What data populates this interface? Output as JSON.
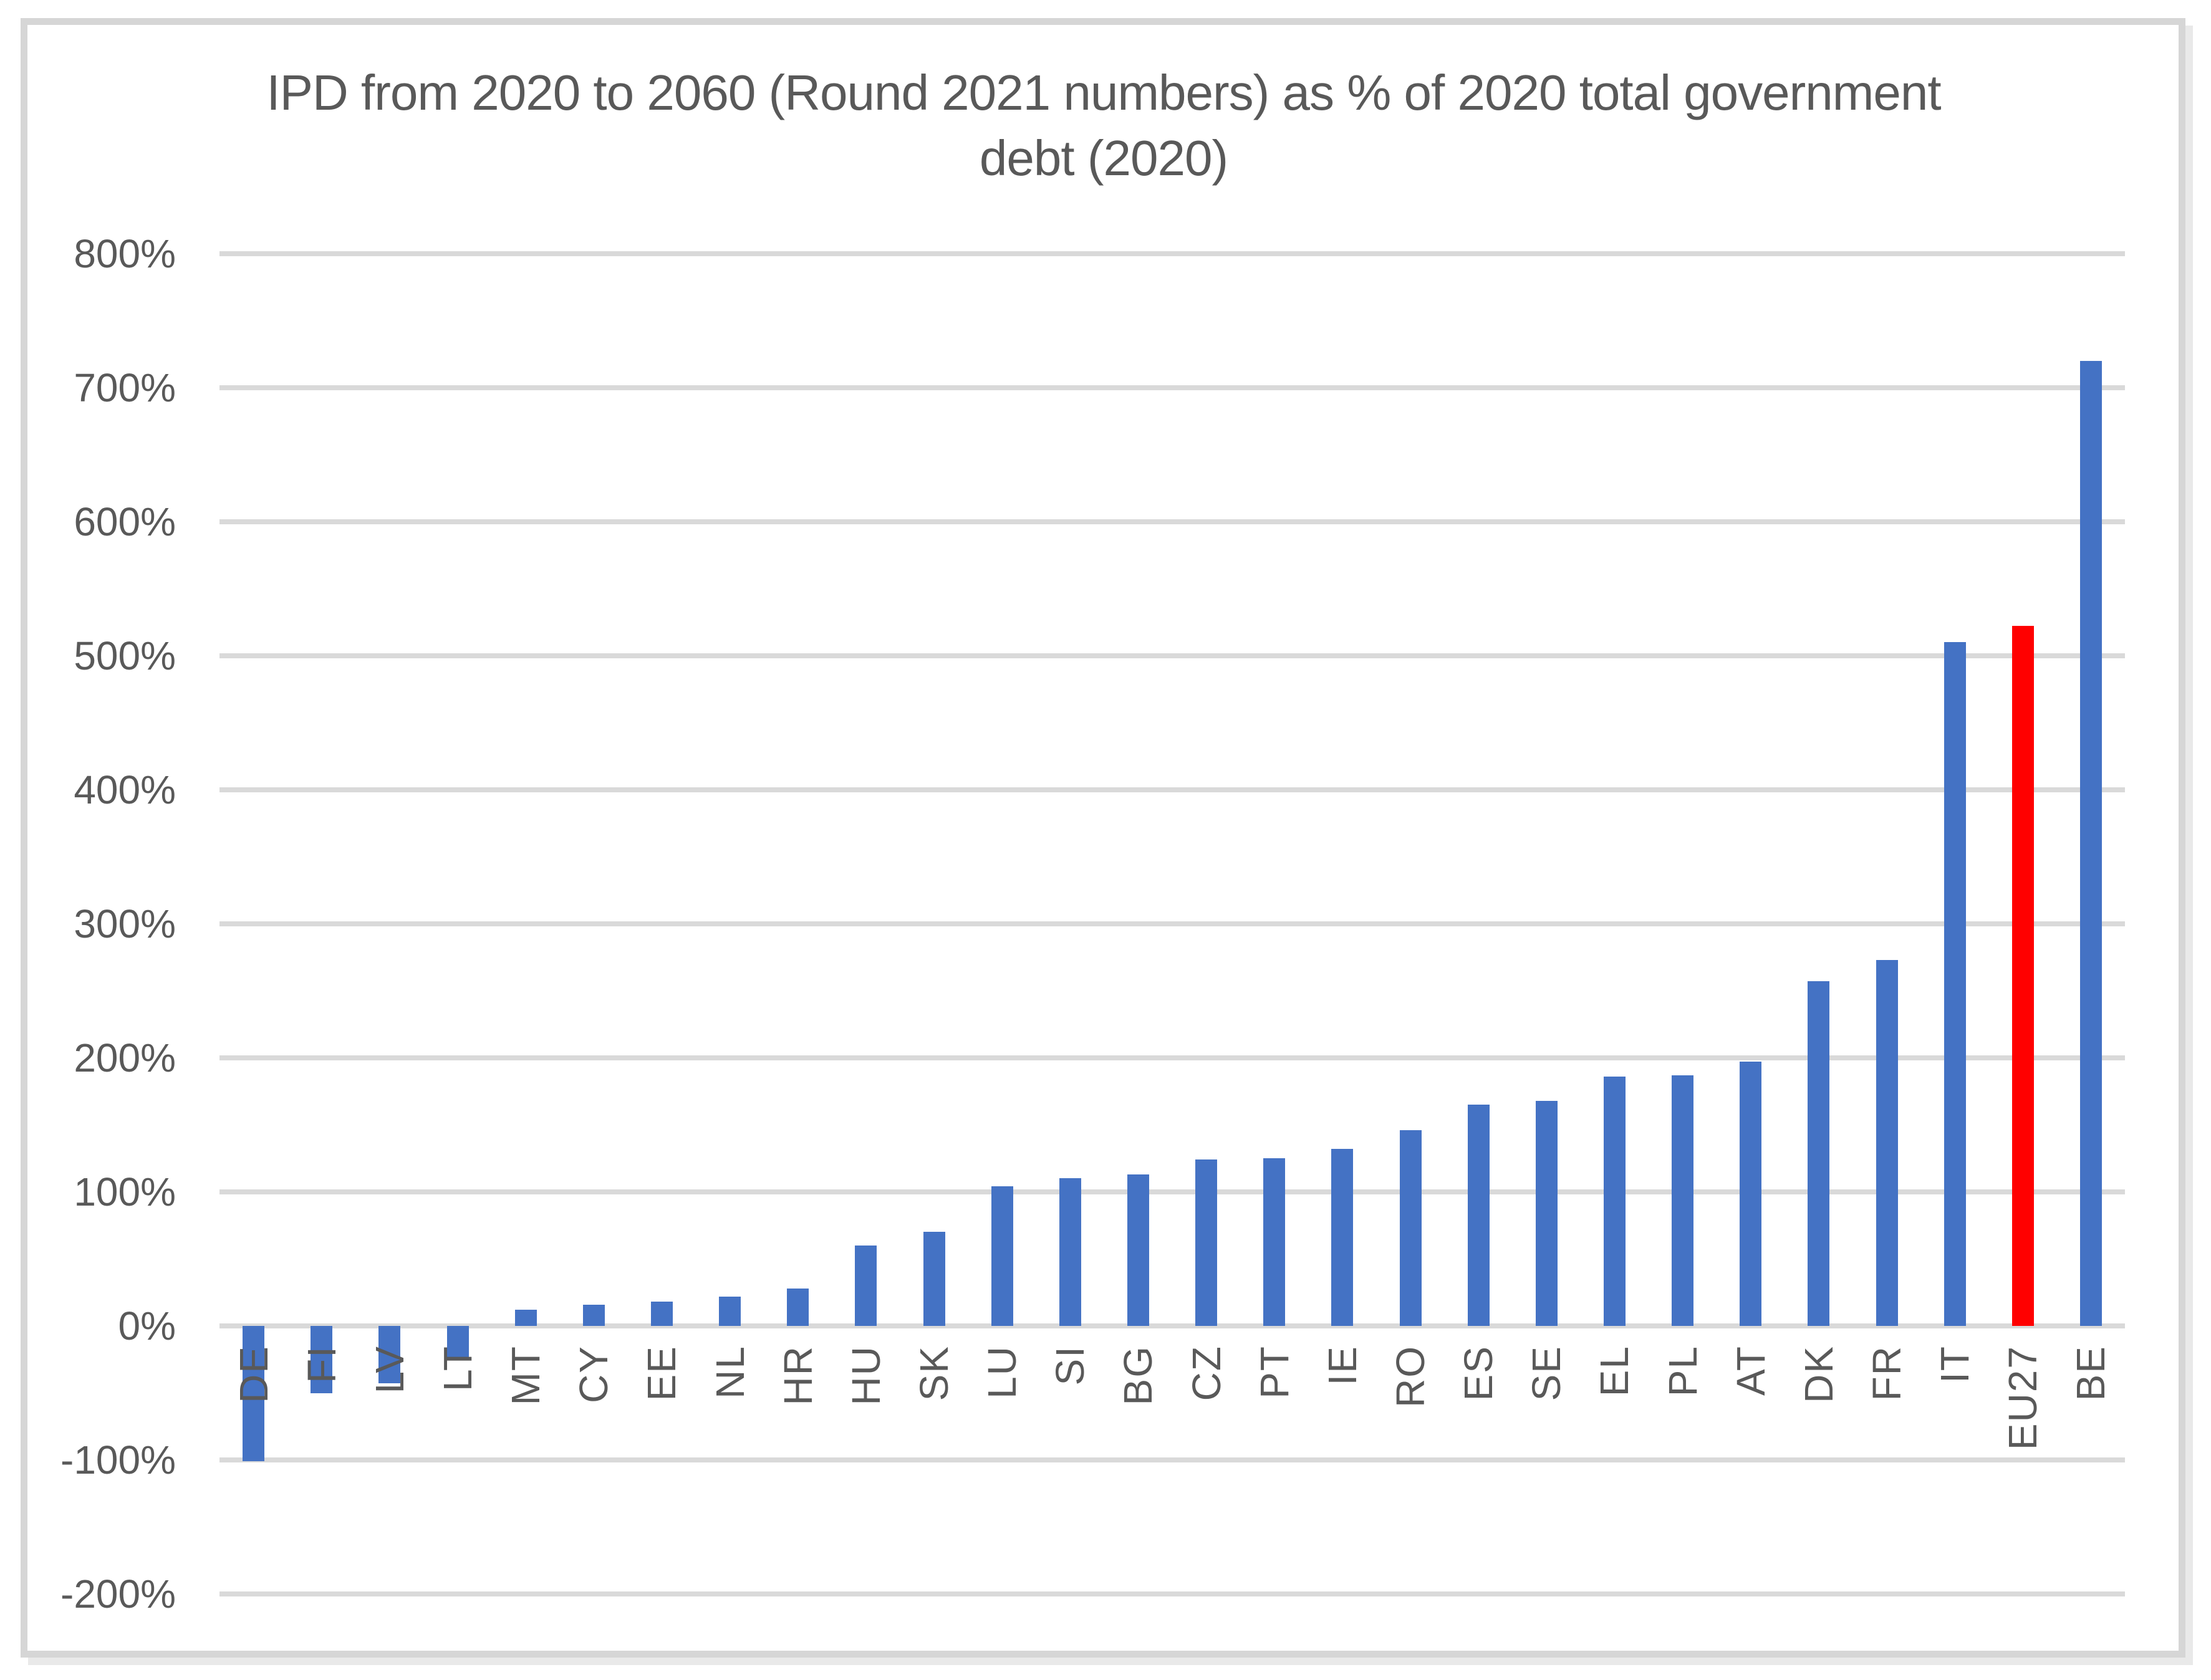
{
  "chart_data": {
    "type": "bar",
    "title": "IPD from 2020 to 2060 (Round 2021 numbers) as % of 2020 total government debt (2020)",
    "title_lines": [
      "IPD from 2020 to 2060 (Round 2021 numbers) as % of 2020 total government",
      "debt (2020)"
    ],
    "categories": [
      "DE",
      "FI",
      "LV",
      "LT",
      "MT",
      "CY",
      "EE",
      "NL",
      "HR",
      "HU",
      "SK",
      "LU",
      "SI",
      "BG",
      "CZ",
      "PT",
      "IE",
      "RO",
      "ES",
      "SE",
      "EL",
      "PL",
      "AT",
      "DK",
      "FR",
      "IT",
      "EU27",
      "BE"
    ],
    "values": [
      -101,
      -50,
      -43,
      -24,
      12,
      16,
      18,
      22,
      28,
      60,
      70,
      104,
      110,
      113,
      124,
      125,
      132,
      146,
      165,
      168,
      186,
      187,
      197,
      257,
      273,
      510,
      522,
      720
    ],
    "unit": "%",
    "highlight_category": "EU27",
    "bar_color": "#4472C4",
    "highlight_color": "#FF0000",
    "text_color": "#595959",
    "gridline_color": "#D9D9D9",
    "y_axis": {
      "tick_labels": [
        "800%",
        "700%",
        "600%",
        "500%",
        "400%",
        "300%",
        "200%",
        "100%",
        "0%",
        "-100%",
        "-200%"
      ],
      "tick_values": [
        800,
        700,
        600,
        500,
        400,
        300,
        200,
        100,
        0,
        -100,
        -200
      ],
      "min": -200,
      "max": 800,
      "grid": true
    },
    "legend": null,
    "xlabel": "",
    "ylabel": ""
  }
}
